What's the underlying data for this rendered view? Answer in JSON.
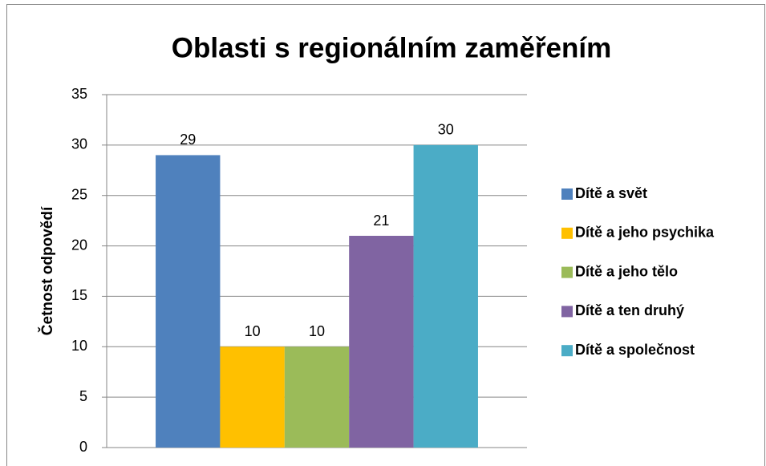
{
  "chart_data": {
    "type": "bar",
    "title": "Oblasti s regionálním zaměřením",
    "ylabel": "Četnost odpovědí",
    "categories": [
      null
    ],
    "series": [
      {
        "name": "Dítě a svět",
        "color": "#4f81bd",
        "values": [
          29
        ]
      },
      {
        "name": "Dítě a jeho psychika",
        "color": "#ffc000",
        "values": [
          10
        ]
      },
      {
        "name": "Dítě a jeho tělo",
        "color": "#9bbb59",
        "values": [
          10
        ]
      },
      {
        "name": "Dítě a ten druhý",
        "color": "#8064a2",
        "values": [
          21
        ]
      },
      {
        "name": "Dítě a společnost",
        "color": "#4bacc6",
        "values": [
          30
        ]
      }
    ],
    "ylim": [
      0,
      35
    ],
    "yticks": [
      0,
      5,
      10,
      15,
      20,
      25,
      30,
      35
    ],
    "grid": true,
    "legend": "right"
  }
}
